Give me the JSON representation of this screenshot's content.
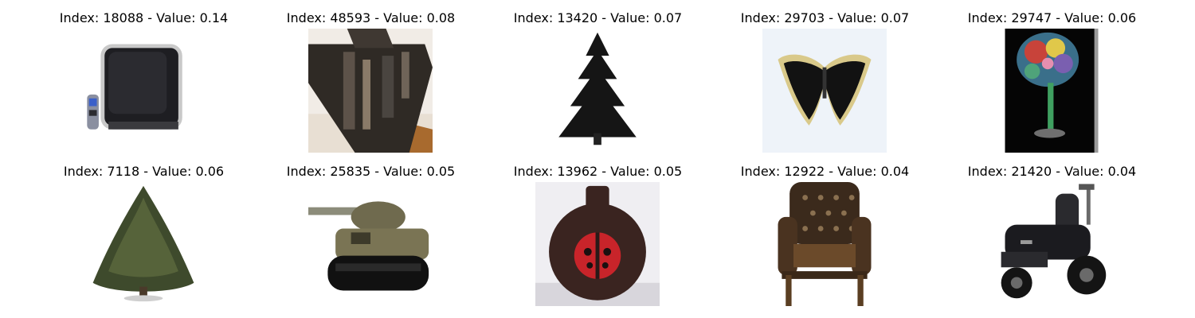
{
  "grid": {
    "items": [
      {
        "title": "Index: 18088 - Value: 0.14",
        "depicts": "television-with-remote"
      },
      {
        "title": "Index: 48593 - Value: 0.08",
        "depicts": "tank"
      },
      {
        "title": "Index: 13420 - Value: 0.07",
        "depicts": "pine-tree"
      },
      {
        "title": "Index: 29703 - Value: 0.07",
        "depicts": "butterfly"
      },
      {
        "title": "Index: 29747 - Value: 0.06",
        "depicts": "flower-vase"
      },
      {
        "title": "Index: 7118 - Value: 0.06",
        "depicts": "tree"
      },
      {
        "title": "Index: 25835 - Value: 0.05",
        "depicts": "tank"
      },
      {
        "title": "Index: 13962 - Value: 0.05",
        "depicts": "ladybug-pot"
      },
      {
        "title": "Index: 12922 - Value: 0.04",
        "depicts": "armchair"
      },
      {
        "title": "Index: 21420 - Value: 0.04",
        "depicts": "lawn-tractor"
      }
    ]
  }
}
